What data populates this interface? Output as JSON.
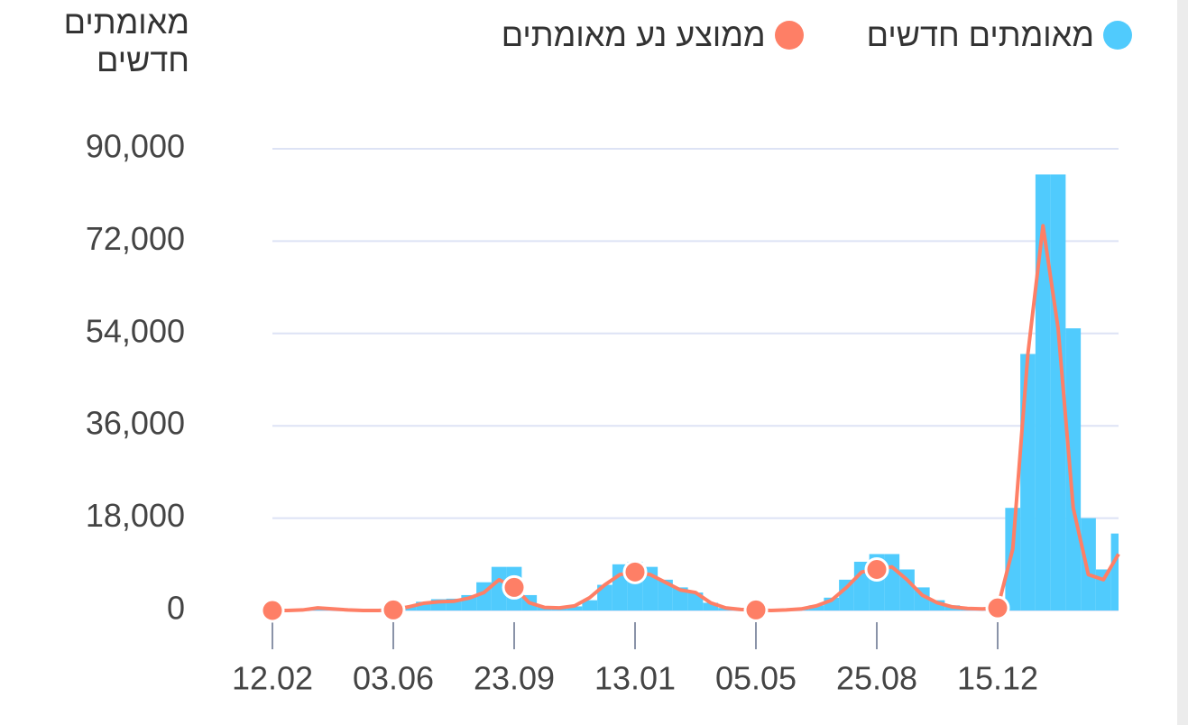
{
  "chart_data": {
    "type": "bar",
    "y_axis_title": "מאומתים חדשים",
    "legend_position": "top-right",
    "grid": true,
    "ylim": [
      0,
      90000
    ],
    "yticks": [
      {
        "value": 0,
        "label": "0"
      },
      {
        "value": 18000,
        "label": "18,000"
      },
      {
        "value": 36000,
        "label": "36,000"
      },
      {
        "value": 54000,
        "label": "54,000"
      },
      {
        "value": 72000,
        "label": "72,000"
      },
      {
        "value": 90000,
        "label": "90,000"
      }
    ],
    "categories": [
      "12.02",
      null,
      null,
      null,
      null,
      null,
      null,
      null,
      "03.06",
      null,
      null,
      null,
      null,
      null,
      null,
      null,
      "23.09",
      null,
      null,
      null,
      null,
      null,
      null,
      null,
      "13.01",
      null,
      null,
      null,
      null,
      null,
      null,
      null,
      "05.05",
      null,
      null,
      null,
      null,
      null,
      null,
      null,
      "25.08",
      null,
      null,
      null,
      null,
      null,
      null,
      null,
      "15.12",
      null,
      null,
      null,
      null,
      null,
      null,
      null,
      null
    ],
    "series": [
      {
        "name": "מאומתים חדשים",
        "type": "bar",
        "color": "#50cbfd",
        "values": [
          0,
          0,
          100,
          400,
          300,
          100,
          0,
          0,
          100,
          900,
          1700,
          2200,
          2300,
          3000,
          5500,
          8500,
          8500,
          3000,
          800,
          500,
          800,
          2000,
          5000,
          9000,
          9500,
          8500,
          6000,
          4500,
          3500,
          1500,
          500,
          200,
          100,
          0,
          100,
          300,
          1000,
          2500,
          6000,
          9500,
          11000,
          11000,
          8000,
          4500,
          2000,
          1000,
          500,
          400,
          600,
          20000,
          50000,
          85000,
          85000,
          55000,
          18000,
          8000,
          15000
        ]
      },
      {
        "name": "ממוצע נע מאומתים",
        "type": "line",
        "color": "#fe7f66",
        "values": [
          0,
          0,
          100,
          500,
          300,
          100,
          0,
          0,
          100,
          700,
          1400,
          1700,
          1800,
          2400,
          3500,
          6000,
          4500,
          1500,
          600,
          500,
          900,
          2500,
          5000,
          7000,
          7500,
          7000,
          5500,
          4000,
          3500,
          1500,
          500,
          200,
          100,
          0,
          100,
          300,
          900,
          2000,
          4500,
          7500,
          8000,
          8500,
          6000,
          3000,
          1500,
          700,
          400,
          300,
          500,
          12000,
          50000,
          75000,
          55000,
          20000,
          7000,
          6000,
          11000
        ]
      }
    ]
  }
}
